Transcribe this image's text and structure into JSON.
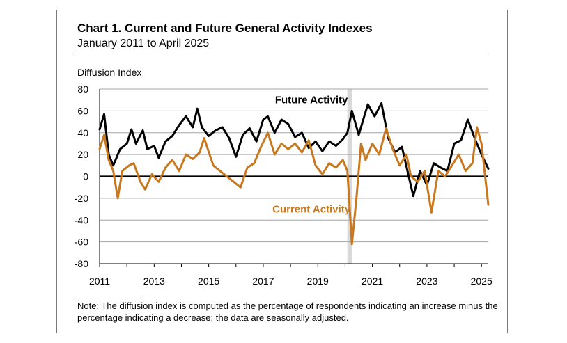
{
  "chart_data": {
    "type": "line",
    "title": "Chart 1. Current and Future General Activity Indexes",
    "subtitle": "January 2011 to April 2025",
    "ylabel": "Diffusion Index",
    "xlabel": "",
    "ylim": [
      -80,
      80
    ],
    "yticks": [
      80,
      60,
      40,
      20,
      0,
      -20,
      -40,
      -60,
      -80
    ],
    "xticks": [
      "2011",
      "2013",
      "2015",
      "2017",
      "2019",
      "2021",
      "2023",
      "2025"
    ],
    "x_start": "2011-01",
    "x_end": "2025-04",
    "grid": true,
    "shaded_period": [
      "2020-02",
      "2020-04"
    ],
    "series": [
      {
        "name": "Future Activity",
        "color": "#000000",
        "points": [
          [
            "2011-01",
            43
          ],
          [
            "2011-03",
            57
          ],
          [
            "2011-05",
            20
          ],
          [
            "2011-07",
            10
          ],
          [
            "2011-10",
            25
          ],
          [
            "2012-01",
            30
          ],
          [
            "2012-03",
            43
          ],
          [
            "2012-05",
            30
          ],
          [
            "2012-08",
            42
          ],
          [
            "2012-10",
            25
          ],
          [
            "2013-01",
            28
          ],
          [
            "2013-03",
            17
          ],
          [
            "2013-06",
            32
          ],
          [
            "2013-09",
            37
          ],
          [
            "2013-12",
            47
          ],
          [
            "2014-03",
            55
          ],
          [
            "2014-06",
            45
          ],
          [
            "2014-08",
            62
          ],
          [
            "2014-10",
            45
          ],
          [
            "2015-01",
            37
          ],
          [
            "2015-04",
            42
          ],
          [
            "2015-07",
            45
          ],
          [
            "2015-10",
            35
          ],
          [
            "2016-01",
            18
          ],
          [
            "2016-04",
            38
          ],
          [
            "2016-07",
            44
          ],
          [
            "2016-10",
            32
          ],
          [
            "2017-01",
            52
          ],
          [
            "2017-03",
            55
          ],
          [
            "2017-06",
            40
          ],
          [
            "2017-09",
            52
          ],
          [
            "2017-12",
            48
          ],
          [
            "2018-03",
            36
          ],
          [
            "2018-06",
            40
          ],
          [
            "2018-09",
            26
          ],
          [
            "2018-12",
            32
          ],
          [
            "2019-03",
            23
          ],
          [
            "2019-06",
            32
          ],
          [
            "2019-09",
            28
          ],
          [
            "2019-12",
            34
          ],
          [
            "2020-02",
            40
          ],
          [
            "2020-04",
            60
          ],
          [
            "2020-07",
            38
          ],
          [
            "2020-09",
            52
          ],
          [
            "2020-11",
            66
          ],
          [
            "2021-02",
            55
          ],
          [
            "2021-05",
            67
          ],
          [
            "2021-08",
            35
          ],
          [
            "2021-11",
            22
          ],
          [
            "2022-02",
            27
          ],
          [
            "2022-05",
            0
          ],
          [
            "2022-07",
            -18
          ],
          [
            "2022-10",
            5
          ],
          [
            "2023-01",
            -8
          ],
          [
            "2023-04",
            12
          ],
          [
            "2023-07",
            8
          ],
          [
            "2023-10",
            5
          ],
          [
            "2024-01",
            30
          ],
          [
            "2024-04",
            33
          ],
          [
            "2024-07",
            52
          ],
          [
            "2024-10",
            35
          ],
          [
            "2025-01",
            20
          ],
          [
            "2025-04",
            7
          ]
        ]
      },
      {
        "name": "Current Activity",
        "color": "#C8781E",
        "points": [
          [
            "2011-01",
            25
          ],
          [
            "2011-03",
            38
          ],
          [
            "2011-05",
            15
          ],
          [
            "2011-07",
            5
          ],
          [
            "2011-09",
            -20
          ],
          [
            "2011-11",
            5
          ],
          [
            "2012-02",
            10
          ],
          [
            "2012-04",
            12
          ],
          [
            "2012-07",
            -5
          ],
          [
            "2012-09",
            -12
          ],
          [
            "2012-12",
            2
          ],
          [
            "2013-03",
            -5
          ],
          [
            "2013-06",
            8
          ],
          [
            "2013-09",
            15
          ],
          [
            "2013-12",
            5
          ],
          [
            "2014-03",
            20
          ],
          [
            "2014-06",
            16
          ],
          [
            "2014-09",
            22
          ],
          [
            "2014-11",
            35
          ],
          [
            "2015-03",
            10
          ],
          [
            "2015-06",
            5
          ],
          [
            "2015-09",
            0
          ],
          [
            "2015-12",
            -5
          ],
          [
            "2016-03",
            -10
          ],
          [
            "2016-06",
            8
          ],
          [
            "2016-09",
            12
          ],
          [
            "2016-12",
            27
          ],
          [
            "2017-03",
            40
          ],
          [
            "2017-06",
            20
          ],
          [
            "2017-09",
            30
          ],
          [
            "2017-12",
            25
          ],
          [
            "2018-03",
            30
          ],
          [
            "2018-06",
            22
          ],
          [
            "2018-09",
            33
          ],
          [
            "2018-12",
            10
          ],
          [
            "2019-03",
            2
          ],
          [
            "2019-06",
            12
          ],
          [
            "2019-09",
            8
          ],
          [
            "2019-12",
            15
          ],
          [
            "2020-02",
            5
          ],
          [
            "2020-04",
            -62
          ],
          [
            "2020-06",
            -20
          ],
          [
            "2020-08",
            30
          ],
          [
            "2020-10",
            15
          ],
          [
            "2021-01",
            30
          ],
          [
            "2021-04",
            20
          ],
          [
            "2021-07",
            44
          ],
          [
            "2021-10",
            25
          ],
          [
            "2022-01",
            10
          ],
          [
            "2022-04",
            20
          ],
          [
            "2022-06",
            0
          ],
          [
            "2022-09",
            -5
          ],
          [
            "2022-12",
            5
          ],
          [
            "2023-03",
            -33
          ],
          [
            "2023-06",
            5
          ],
          [
            "2023-09",
            0
          ],
          [
            "2023-12",
            10
          ],
          [
            "2024-03",
            20
          ],
          [
            "2024-06",
            5
          ],
          [
            "2024-09",
            12
          ],
          [
            "2024-11",
            45
          ],
          [
            "2025-01",
            30
          ],
          [
            "2025-04",
            -26
          ]
        ]
      }
    ],
    "annotations": [
      {
        "text": "Future Activity",
        "x": "2018-01",
        "y": 70
      },
      {
        "text": "Current Activity",
        "x": "2018-01",
        "y": -30
      }
    ]
  },
  "note": "Note: The diffusion index is computed as the percentage of respondents indicating an increase minus the percentage indicating a decrease; the data are seasonally adjusted."
}
